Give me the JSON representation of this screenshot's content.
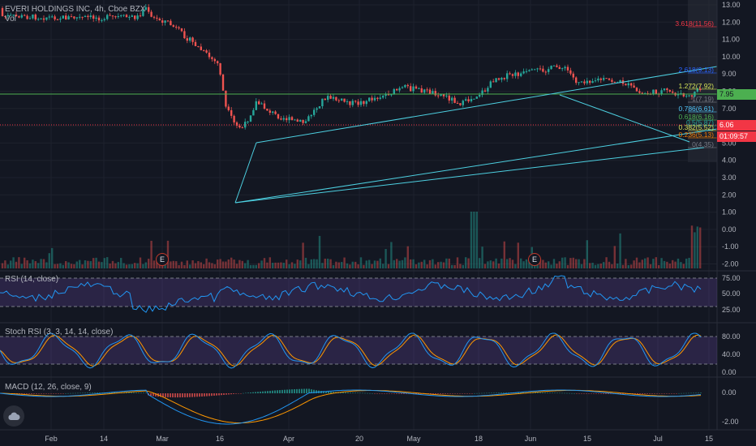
{
  "header": {
    "symbol_title": "EVERI HOLDINGS INC, 4h, Cboe BZX",
    "vol_label": "Vol"
  },
  "price_axis": {
    "ticks": [
      "13.00",
      "12.00",
      "11.00",
      "10.00",
      "9.00",
      "8.00",
      "7.00",
      "6.00",
      "5.00",
      "4.00",
      "3.00",
      "2.00",
      "1.00",
      "0.00",
      "-1.00",
      "-2.00"
    ]
  },
  "price_tags": {
    "resistance": "7.95",
    "last_price": "6.06",
    "countdown": "01:09:57"
  },
  "fib_labels": [
    {
      "text": "3.618(11.56)",
      "color": "#f23645"
    },
    {
      "text": "2.618(9.13)",
      "color": "#2962ff"
    },
    {
      "text": "1.272(7.92)",
      "color": "#d4e157"
    },
    {
      "text": "1(7.19)",
      "color": "#787b86"
    },
    {
      "text": "0.786(6.61)",
      "color": "#4fc3f7"
    },
    {
      "text": "0.618(6.16)",
      "color": "#4caf50"
    },
    {
      "text": "0.5(5.87)",
      "color": "#26a69a"
    },
    {
      "text": "0.382(5.52)",
      "color": "#d4e157"
    },
    {
      "text": "0.236(5.13)",
      "color": "#f57c00"
    },
    {
      "text": "0(4.35)",
      "color": "#787b86"
    }
  ],
  "events": [
    {
      "label": "E"
    },
    {
      "label": "E"
    }
  ],
  "rsi": {
    "title": "RSI (14, close)",
    "ticks": [
      "75.00",
      "50.00",
      "25.00"
    ]
  },
  "stoch": {
    "title": "Stoch RSI (3, 3, 14, 14, close)",
    "ticks": [
      "80.00",
      "40.00",
      "0.00"
    ]
  },
  "macd": {
    "title": "MACD (12, 26, close, 9)",
    "ticks": [
      "0.00",
      "-2.00"
    ]
  },
  "time_axis": {
    "ticks": [
      "Feb",
      "14",
      "Mar",
      "16",
      "Apr",
      "20",
      "May",
      "18",
      "Jun",
      "15",
      "Jul",
      "15"
    ]
  },
  "colors": {
    "background": "#131722",
    "up": "#26a69a",
    "down": "#ef5350",
    "channel": "#4dd0e1",
    "resistance_line": "#4caf50",
    "last_price": "#f23645",
    "rsi_line": "#2196f3",
    "stoch_k": "#2196f3",
    "stoch_d": "#ff9800",
    "oscillator_band": "#7e57c2"
  },
  "logo": {
    "icon": "tradingview-cloud-icon"
  }
}
